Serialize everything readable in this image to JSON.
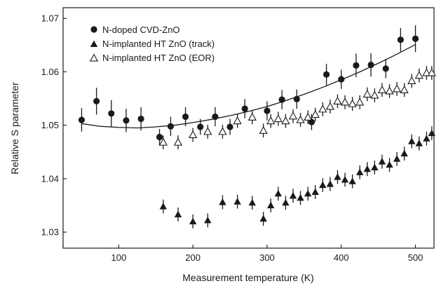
{
  "chart_data": {
    "type": "scatter",
    "xlabel": "Measurement temperature (K)",
    "ylabel": "Relative S parameter",
    "xlim": [
      25,
      525
    ],
    "ylim": [
      1.027,
      1.072
    ],
    "xticks": [
      100,
      200,
      300,
      400,
      500
    ],
    "yticks": [
      1.03,
      1.04,
      1.05,
      1.06,
      1.07
    ],
    "x_tick_labels": [
      "100",
      "200",
      "300",
      "400",
      "500"
    ],
    "y_tick_labels": [
      "1.03",
      "1.04",
      "1.05",
      "1.06",
      "1.07"
    ],
    "legend_position": "top-left",
    "grid": false,
    "series": [
      {
        "name": "N-doped CVD-ZnO",
        "marker": "circle-filled",
        "color": "#1a1a1a",
        "points": [
          {
            "x": 50,
            "y": 1.051,
            "err": 0.0022
          },
          {
            "x": 70,
            "y": 1.0545,
            "err": 0.0025
          },
          {
            "x": 90,
            "y": 1.0522,
            "err": 0.0025
          },
          {
            "x": 110,
            "y": 1.0509,
            "err": 0.0022
          },
          {
            "x": 130,
            "y": 1.0512,
            "err": 0.0022
          },
          {
            "x": 155,
            "y": 1.0478,
            "err": 0.0015
          },
          {
            "x": 170,
            "y": 1.0498,
            "err": 0.0018
          },
          {
            "x": 190,
            "y": 1.0516,
            "err": 0.0018
          },
          {
            "x": 210,
            "y": 1.0497,
            "err": 0.0015
          },
          {
            "x": 230,
            "y": 1.0516,
            "err": 0.0018
          },
          {
            "x": 250,
            "y": 1.0497,
            "err": 0.0015
          },
          {
            "x": 270,
            "y": 1.0531,
            "err": 0.0018
          },
          {
            "x": 300,
            "y": 1.0527,
            "err": 0.0018
          },
          {
            "x": 320,
            "y": 1.0548,
            "err": 0.0018
          },
          {
            "x": 340,
            "y": 1.0549,
            "err": 0.0018
          },
          {
            "x": 360,
            "y": 1.0506,
            "err": 0.0015
          },
          {
            "x": 380,
            "y": 1.0595,
            "err": 0.002
          },
          {
            "x": 400,
            "y": 1.0586,
            "err": 0.0018
          },
          {
            "x": 420,
            "y": 1.0612,
            "err": 0.0022
          },
          {
            "x": 440,
            "y": 1.0613,
            "err": 0.0022
          },
          {
            "x": 460,
            "y": 1.0606,
            "err": 0.0018
          },
          {
            "x": 480,
            "y": 1.066,
            "err": 0.0022
          },
          {
            "x": 500,
            "y": 1.0662,
            "err": 0.0025
          }
        ]
      },
      {
        "name": "N-implanted HT ZnO (track)",
        "marker": "triangle-filled",
        "color": "#1a1a1a",
        "points": [
          {
            "x": 160,
            "y": 1.0348,
            "err": 0.0013
          },
          {
            "x": 180,
            "y": 1.0333,
            "err": 0.0013
          },
          {
            "x": 200,
            "y": 1.032,
            "err": 0.0013
          },
          {
            "x": 220,
            "y": 1.0322,
            "err": 0.0013
          },
          {
            "x": 240,
            "y": 1.0356,
            "err": 0.0013
          },
          {
            "x": 260,
            "y": 1.0357,
            "err": 0.0013
          },
          {
            "x": 280,
            "y": 1.0355,
            "err": 0.0013
          },
          {
            "x": 295,
            "y": 1.0325,
            "err": 0.0013
          },
          {
            "x": 305,
            "y": 1.035,
            "err": 0.0013
          },
          {
            "x": 315,
            "y": 1.0372,
            "err": 0.0013
          },
          {
            "x": 325,
            "y": 1.0355,
            "err": 0.0013
          },
          {
            "x": 335,
            "y": 1.0368,
            "err": 0.0013
          },
          {
            "x": 345,
            "y": 1.0364,
            "err": 0.0013
          },
          {
            "x": 355,
            "y": 1.0372,
            "err": 0.0013
          },
          {
            "x": 365,
            "y": 1.0375,
            "err": 0.0013
          },
          {
            "x": 375,
            "y": 1.0388,
            "err": 0.0013
          },
          {
            "x": 385,
            "y": 1.039,
            "err": 0.0013
          },
          {
            "x": 395,
            "y": 1.0403,
            "err": 0.0013
          },
          {
            "x": 405,
            "y": 1.0398,
            "err": 0.0013
          },
          {
            "x": 415,
            "y": 1.0395,
            "err": 0.0013
          },
          {
            "x": 425,
            "y": 1.0412,
            "err": 0.0013
          },
          {
            "x": 435,
            "y": 1.0418,
            "err": 0.0013
          },
          {
            "x": 445,
            "y": 1.0421,
            "err": 0.0013
          },
          {
            "x": 455,
            "y": 1.0432,
            "err": 0.0013
          },
          {
            "x": 465,
            "y": 1.0426,
            "err": 0.0013
          },
          {
            "x": 475,
            "y": 1.0437,
            "err": 0.0013
          },
          {
            "x": 485,
            "y": 1.0447,
            "err": 0.0013
          },
          {
            "x": 495,
            "y": 1.047,
            "err": 0.0013
          },
          {
            "x": 505,
            "y": 1.0466,
            "err": 0.0013
          },
          {
            "x": 515,
            "y": 1.0475,
            "err": 0.0013
          },
          {
            "x": 522,
            "y": 1.0485,
            "err": 0.0013
          }
        ]
      },
      {
        "name": "N-implanted HT ZnO (EOR)",
        "marker": "triangle-open",
        "color": "#1a1a1a",
        "points": [
          {
            "x": 160,
            "y": 1.0468,
            "err": 0.0013
          },
          {
            "x": 180,
            "y": 1.0468,
            "err": 0.0013
          },
          {
            "x": 200,
            "y": 1.0482,
            "err": 0.0013
          },
          {
            "x": 220,
            "y": 1.0488,
            "err": 0.0013
          },
          {
            "x": 240,
            "y": 1.0488,
            "err": 0.0013
          },
          {
            "x": 260,
            "y": 1.0508,
            "err": 0.0013
          },
          {
            "x": 280,
            "y": 1.0515,
            "err": 0.0013
          },
          {
            "x": 295,
            "y": 1.049,
            "err": 0.0013
          },
          {
            "x": 305,
            "y": 1.0508,
            "err": 0.0013
          },
          {
            "x": 315,
            "y": 1.0512,
            "err": 0.0013
          },
          {
            "x": 325,
            "y": 1.0508,
            "err": 0.0013
          },
          {
            "x": 335,
            "y": 1.0517,
            "err": 0.0013
          },
          {
            "x": 345,
            "y": 1.051,
            "err": 0.0013
          },
          {
            "x": 355,
            "y": 1.0515,
            "err": 0.0013
          },
          {
            "x": 365,
            "y": 1.052,
            "err": 0.0013
          },
          {
            "x": 375,
            "y": 1.053,
            "err": 0.0013
          },
          {
            "x": 385,
            "y": 1.0535,
            "err": 0.0013
          },
          {
            "x": 395,
            "y": 1.0545,
            "err": 0.0013
          },
          {
            "x": 405,
            "y": 1.0543,
            "err": 0.0013
          },
          {
            "x": 415,
            "y": 1.054,
            "err": 0.0013
          },
          {
            "x": 425,
            "y": 1.0543,
            "err": 0.0013
          },
          {
            "x": 435,
            "y": 1.0558,
            "err": 0.0013
          },
          {
            "x": 445,
            "y": 1.0556,
            "err": 0.0013
          },
          {
            "x": 455,
            "y": 1.0566,
            "err": 0.0013
          },
          {
            "x": 465,
            "y": 1.0564,
            "err": 0.0013
          },
          {
            "x": 475,
            "y": 1.0568,
            "err": 0.0013
          },
          {
            "x": 485,
            "y": 1.0566,
            "err": 0.0013
          },
          {
            "x": 495,
            "y": 1.0583,
            "err": 0.0013
          },
          {
            "x": 505,
            "y": 1.0593,
            "err": 0.0013
          },
          {
            "x": 515,
            "y": 1.0598,
            "err": 0.0013
          },
          {
            "x": 522,
            "y": 1.0598,
            "err": 0.0013
          }
        ]
      }
    ],
    "fit_curve": {
      "series": "N-doped CVD-ZnO",
      "type": "polynomial",
      "points": [
        {
          "x": 50,
          "y": 1.0503
        },
        {
          "x": 75,
          "y": 1.0498
        },
        {
          "x": 100,
          "y": 1.0496
        },
        {
          "x": 125,
          "y": 1.0495
        },
        {
          "x": 150,
          "y": 1.0497
        },
        {
          "x": 175,
          "y": 1.05
        },
        {
          "x": 200,
          "y": 1.0505
        },
        {
          "x": 225,
          "y": 1.0511
        },
        {
          "x": 250,
          "y": 1.0518
        },
        {
          "x": 275,
          "y": 1.0526
        },
        {
          "x": 300,
          "y": 1.0535
        },
        {
          "x": 325,
          "y": 1.0546
        },
        {
          "x": 350,
          "y": 1.0558
        },
        {
          "x": 375,
          "y": 1.0571
        },
        {
          "x": 400,
          "y": 1.0585
        },
        {
          "x": 425,
          "y": 1.06
        },
        {
          "x": 450,
          "y": 1.0616
        },
        {
          "x": 475,
          "y": 1.0633
        },
        {
          "x": 500,
          "y": 1.0651
        }
      ]
    }
  }
}
